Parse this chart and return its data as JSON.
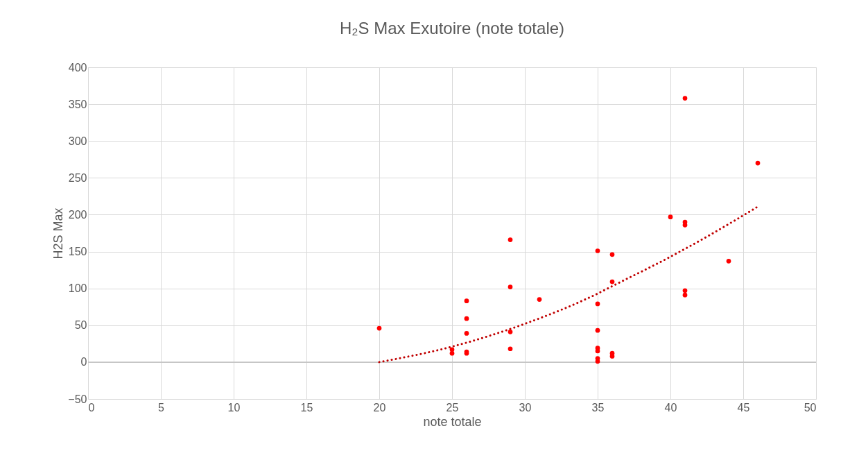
{
  "chart_data": {
    "type": "scatter",
    "title": "H₂S Max Exutoire (note totale)",
    "xlabel": "note totale",
    "ylabel": "H2S Max",
    "xlim": [
      0,
      50
    ],
    "xticks": [
      0,
      5,
      10,
      15,
      20,
      25,
      30,
      35,
      40,
      45,
      50
    ],
    "ylim": [
      -50,
      400
    ],
    "yticks": [
      -50,
      0,
      50,
      100,
      150,
      200,
      250,
      300,
      350,
      400
    ],
    "grid": true,
    "legend": false,
    "series": [
      {
        "marker": "circle",
        "color": "#ff0000",
        "x": [
          20,
          25,
          25,
          26,
          26,
          26,
          26,
          26,
          29,
          29,
          29,
          29,
          31,
          35,
          35,
          35,
          35,
          35,
          35,
          35,
          36,
          36,
          36,
          36,
          40,
          41,
          41,
          41,
          41,
          41,
          44,
          46
        ],
        "values": [
          46,
          12,
          17,
          83,
          59,
          39,
          14,
          12,
          166,
          102,
          41,
          18,
          85,
          151,
          79,
          43,
          19,
          15,
          5,
          1,
          146,
          109,
          12,
          8,
          197,
          358,
          190,
          186,
          97,
          91,
          137,
          270
        ]
      },
      {
        "type": "line",
        "marker": "none",
        "color": "#c00000",
        "line_style": "dotted",
        "x": [
          20,
          25,
          30,
          35,
          36,
          40,
          45,
          46
        ],
        "values": [
          0,
          21,
          52,
          93,
          103,
          143,
          199,
          211
        ]
      }
    ]
  }
}
